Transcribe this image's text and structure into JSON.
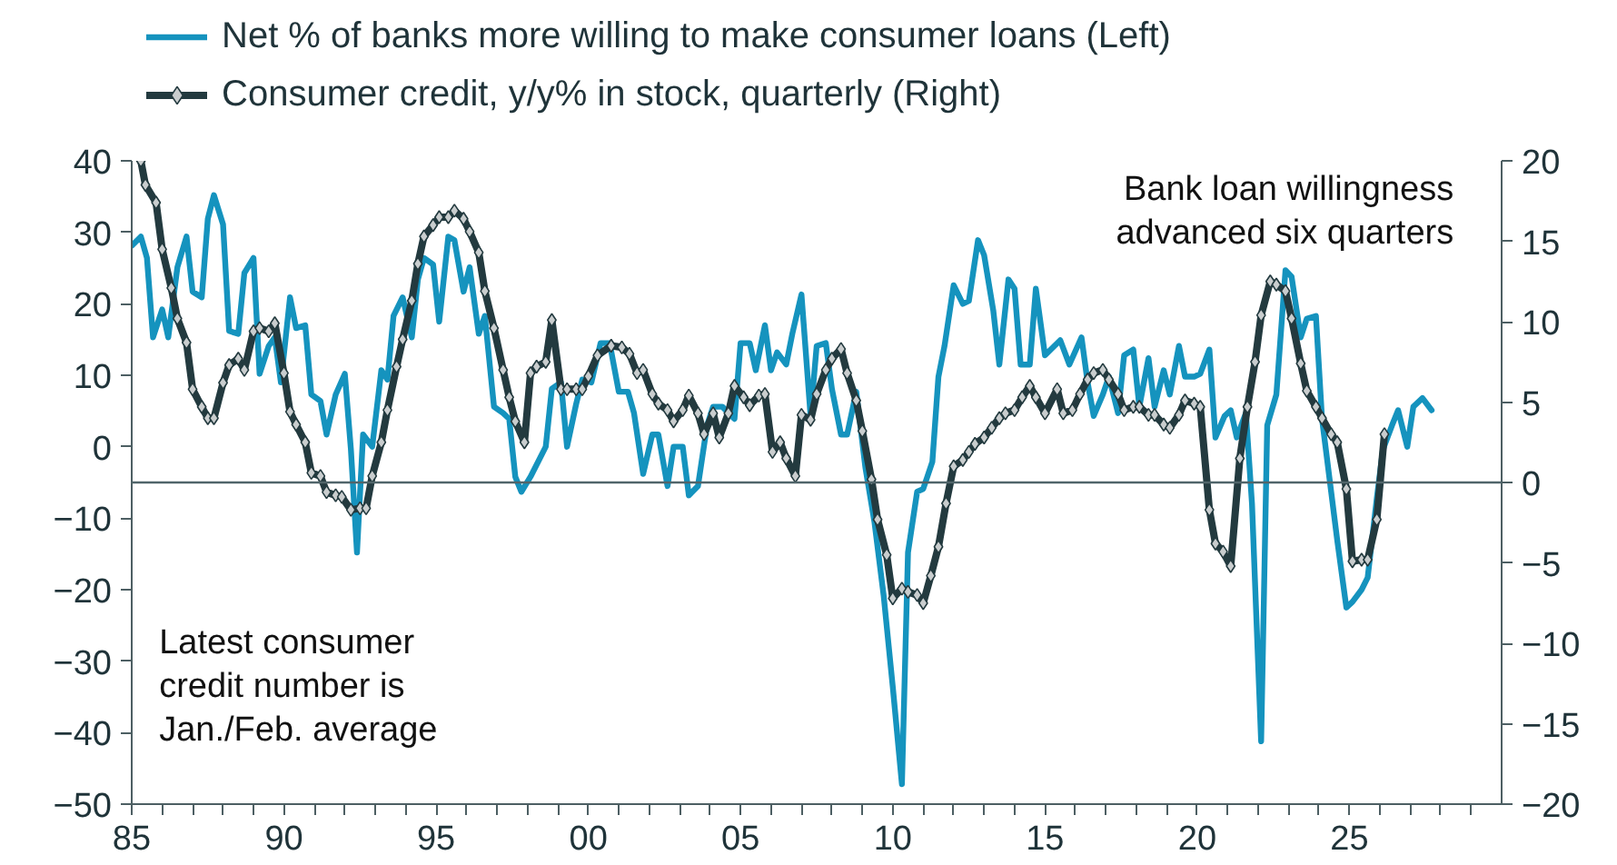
{
  "chart_data": {
    "type": "line",
    "xlim": [
      1985,
      2030
    ],
    "xticks": [
      {
        "value": 1985,
        "label": "85"
      },
      {
        "value": 1986,
        "label": null
      },
      {
        "value": 1987,
        "label": null
      },
      {
        "value": 1988,
        "label": null
      },
      {
        "value": 1989,
        "label": null
      },
      {
        "value": 1990,
        "label": "90"
      },
      {
        "value": 1991,
        "label": null
      },
      {
        "value": 1992,
        "label": null
      },
      {
        "value": 1993,
        "label": null
      },
      {
        "value": 1994,
        "label": null
      },
      {
        "value": 1995,
        "label": "95"
      },
      {
        "value": 1996,
        "label": null
      },
      {
        "value": 1997,
        "label": null
      },
      {
        "value": 1998,
        "label": null
      },
      {
        "value": 1999,
        "label": null
      },
      {
        "value": 2000,
        "label": "00"
      },
      {
        "value": 2001,
        "label": null
      },
      {
        "value": 2002,
        "label": null
      },
      {
        "value": 2003,
        "label": null
      },
      {
        "value": 2004,
        "label": null
      },
      {
        "value": 2005,
        "label": "05"
      },
      {
        "value": 2006,
        "label": null
      },
      {
        "value": 2007,
        "label": null
      },
      {
        "value": 2008,
        "label": null
      },
      {
        "value": 2009,
        "label": null
      },
      {
        "value": 2010,
        "label": "10"
      },
      {
        "value": 2011,
        "label": null
      },
      {
        "value": 2012,
        "label": null
      },
      {
        "value": 2013,
        "label": null
      },
      {
        "value": 2014,
        "label": null
      },
      {
        "value": 2015,
        "label": "15"
      },
      {
        "value": 2016,
        "label": null
      },
      {
        "value": 2017,
        "label": null
      },
      {
        "value": 2018,
        "label": null
      },
      {
        "value": 2019,
        "label": null
      },
      {
        "value": 2020,
        "label": "20"
      },
      {
        "value": 2021,
        "label": null
      },
      {
        "value": 2022,
        "label": null
      },
      {
        "value": 2023,
        "label": null
      },
      {
        "value": 2024,
        "label": null
      },
      {
        "value": 2025,
        "label": "25"
      },
      {
        "value": 2026,
        "label": null
      },
      {
        "value": 2027,
        "label": null
      },
      {
        "value": 2028,
        "label": null
      },
      {
        "value": 2029,
        "label": null
      }
    ],
    "ylim": [
      -50,
      40
    ],
    "yticks": [
      -50,
      -40,
      -30,
      -20,
      -10,
      0,
      10,
      20,
      30,
      40
    ],
    "y2lim": [
      -20,
      20
    ],
    "y2ticks": [
      -20,
      -15,
      -10,
      -5,
      0,
      5,
      10,
      15,
      20
    ],
    "legend": "top",
    "annotations": [
      "Bank loan willingness\nadvanced six quarters",
      "Latest consumer\ncredit number is\nJan./Feb. average"
    ],
    "ref_lines": [
      {
        "axis": "y2",
        "value": 0,
        "color": "#50656a"
      }
    ],
    "series": [
      {
        "name": "Net % of banks more willing to make consumer loans (Left)",
        "color": "#1593be",
        "marker": "none",
        "x": [
          1985.0,
          1985.3,
          1985.5,
          1985.7,
          1986.0,
          1986.2,
          1986.5,
          1986.8,
          1987.0,
          1987.3,
          1987.5,
          1987.7,
          1988.0,
          1988.2,
          1988.5,
          1988.7,
          1989.0,
          1989.2,
          1989.5,
          1989.7,
          1989.9,
          1990.2,
          1990.4,
          1990.7,
          1990.9,
          1991.2,
          1991.4,
          1991.7,
          1992.0,
          1992.2,
          1992.4,
          1992.6,
          1992.9,
          1993.2,
          1993.4,
          1993.6,
          1993.9,
          1994.2,
          1994.4,
          1994.6,
          1994.9,
          1995.1,
          1995.4,
          1995.6,
          1995.9,
          1996.1,
          1996.4,
          1996.6,
          1996.9,
          1997.2,
          1997.4,
          1997.6,
          1997.8,
          1998.1,
          1998.6,
          1998.8,
          1999.1,
          1999.3,
          1999.6,
          1999.8,
          2000.1,
          2000.4,
          2000.7,
          2001.0,
          2001.3,
          2001.5,
          2001.8,
          2002.1,
          2002.3,
          2002.6,
          2002.8,
          2003.1,
          2003.3,
          2003.6,
          2003.9,
          2004.1,
          2004.4,
          2004.8,
          2005.0,
          2005.3,
          2005.5,
          2005.8,
          2006.0,
          2006.2,
          2006.5,
          2006.7,
          2007.0,
          2007.3,
          2007.5,
          2007.8,
          2008.0,
          2008.3,
          2008.5,
          2008.8,
          2009.1,
          2009.4,
          2009.7,
          2010.0,
          2010.3,
          2010.5,
          2010.8,
          2011.0,
          2011.3,
          2011.5,
          2011.7,
          2012.0,
          2012.3,
          2012.5,
          2012.8,
          2013.0,
          2013.3,
          2013.5,
          2013.8,
          2014.0,
          2014.2,
          2014.5,
          2014.7,
          2015.0,
          2015.5,
          2015.8,
          2016.2,
          2016.4,
          2016.6,
          2016.9,
          2017.1,
          2017.4,
          2017.6,
          2017.9,
          2018.1,
          2018.4,
          2018.6,
          2018.9,
          2019.1,
          2019.4,
          2019.6,
          2019.9,
          2020.1,
          2020.4,
          2020.6,
          2020.9,
          2021.1,
          2021.3,
          2021.6,
          2021.8,
          2022.1,
          2022.3,
          2022.6,
          2022.9,
          2023.1,
          2023.4,
          2023.6,
          2023.9,
          2024.1,
          2024.4,
          2024.6,
          2024.9,
          2025.1,
          2025.4,
          2025.6,
          2025.9,
          2026.1,
          2026.4,
          2026.6,
          2026.9,
          2027.1,
          2027.4,
          2027.7
        ],
        "values": [
          28.1,
          29.4,
          26.4,
          15.3,
          19.2,
          15.3,
          25.1,
          29.4,
          21.7,
          20.9,
          31.9,
          35.2,
          31.1,
          16.2,
          15.8,
          24.3,
          26.4,
          10.2,
          14.1,
          15.3,
          9.0,
          20.9,
          16.6,
          17.0,
          7.3,
          6.4,
          1.7,
          7.3,
          10.2,
          -0.4,
          -14.8,
          1.7,
          0.0,
          10.7,
          9.4,
          18.3,
          20.9,
          15.3,
          23.4,
          26.4,
          25.5,
          17.5,
          29.4,
          28.9,
          21.7,
          25.1,
          15.8,
          18.3,
          5.6,
          4.7,
          3.9,
          -4.2,
          -6.3,
          -4.2,
          0.0,
          8.1,
          9.0,
          0.0,
          6.0,
          9.4,
          9.0,
          14.5,
          14.5,
          7.7,
          7.7,
          4.7,
          -3.8,
          1.7,
          1.7,
          -5.5,
          0.0,
          0.0,
          -6.8,
          -5.5,
          3.0,
          5.6,
          5.6,
          3.9,
          14.5,
          14.5,
          10.7,
          17.0,
          10.7,
          13.2,
          11.5,
          15.8,
          21.3,
          4.3,
          14.1,
          14.5,
          8.1,
          1.7,
          1.7,
          7.7,
          -2.9,
          -10.6,
          -20.8,
          -33.6,
          -47.2,
          -14.8,
          -6.3,
          -5.9,
          -2.1,
          9.8,
          14.1,
          22.6,
          20.0,
          20.4,
          28.9,
          26.8,
          19.1,
          11.5,
          23.4,
          22.1,
          11.5,
          11.5,
          22.1,
          12.8,
          14.9,
          11.5,
          15.3,
          9.0,
          4.3,
          7.3,
          9.8,
          4.7,
          12.8,
          13.6,
          5.6,
          12.4,
          5.6,
          10.7,
          7.3,
          14.1,
          9.8,
          9.8,
          10.2,
          13.6,
          1.3,
          4.3,
          5.1,
          1.3,
          4.7,
          -8.0,
          -41.2,
          3.0,
          7.3,
          24.7,
          23.8,
          15.3,
          17.9,
          18.3,
          3.9,
          -6.3,
          -13.1,
          -22.5,
          -21.7,
          -20.0,
          -18.3,
          -7.2,
          -0.4,
          3.0,
          5.1,
          0.0,
          5.6,
          6.8,
          5.1
        ]
      },
      {
        "name": "Consumer credit, y/y% in stock, quarterly (Right)",
        "color": "#233a3f",
        "axis": "y2",
        "marker": "diamond",
        "x": [
          1985.3,
          1985.45,
          1985.8,
          1986.0,
          1986.3,
          1986.5,
          1986.8,
          1987.0,
          1987.3,
          1987.5,
          1987.7,
          1988.0,
          1988.2,
          1988.5,
          1988.7,
          1989.0,
          1989.2,
          1989.5,
          1989.7,
          1990.0,
          1990.2,
          1990.4,
          1990.7,
          1990.9,
          1991.2,
          1991.4,
          1991.7,
          1991.9,
          1992.2,
          1992.5,
          1992.7,
          1992.9,
          1993.2,
          1993.4,
          1993.7,
          1993.9,
          1994.2,
          1994.4,
          1994.6,
          1994.9,
          1995.1,
          1995.4,
          1995.6,
          1995.9,
          1996.1,
          1996.4,
          1996.6,
          1996.9,
          1997.2,
          1997.4,
          1997.6,
          1997.9,
          1998.1,
          1998.3,
          1998.6,
          1998.8,
          1999.1,
          1999.3,
          1999.6,
          1999.8,
          2000.0,
          2000.3,
          2000.75,
          2001.1,
          2001.35,
          2001.6,
          2001.8,
          2002.1,
          2002.3,
          2002.6,
          2002.8,
          2003.1,
          2003.3,
          2003.6,
          2003.8,
          2004.1,
          2004.3,
          2004.6,
          2004.8,
          2005.1,
          2005.3,
          2005.6,
          2005.8,
          2006.05,
          2006.3,
          2006.5,
          2006.8,
          2007.0,
          2007.3,
          2007.5,
          2007.8,
          2008.0,
          2008.3,
          2008.5,
          2008.8,
          2009.0,
          2009.3,
          2009.5,
          2009.8,
          2010.0,
          2010.3,
          2010.5,
          2010.8,
          2011.0,
          2011.25,
          2011.5,
          2011.75,
          2012.0,
          2012.3,
          2012.5,
          2012.7,
          2013.0,
          2013.25,
          2013.5,
          2013.7,
          2014.0,
          2014.25,
          2014.5,
          2014.7,
          2015.0,
          2015.4,
          2015.6,
          2015.9,
          2016.15,
          2016.4,
          2016.6,
          2016.9,
          2017.1,
          2017.4,
          2017.6,
          2017.9,
          2018.1,
          2018.4,
          2018.6,
          2018.9,
          2019.1,
          2019.4,
          2019.6,
          2019.9,
          2020.1,
          2020.4,
          2020.6,
          2020.85,
          2021.1,
          2021.4,
          2021.65,
          2021.9,
          2022.1,
          2022.4,
          2022.6,
          2022.9,
          2023.1,
          2023.4,
          2023.6,
          2023.9,
          2024.1,
          2024.4,
          2024.6,
          2024.9,
          2025.1,
          2025.4,
          2025.6,
          2025.9,
          2026.15
        ],
        "values": [
          20,
          18.5,
          17.4,
          14.5,
          12.1,
          10.2,
          8.7,
          5.8,
          4.7,
          4.0,
          4.0,
          6.2,
          7.3,
          7.7,
          7.0,
          9.4,
          9.6,
          9.4,
          9.9,
          6.8,
          4.4,
          3.6,
          2.5,
          0.6,
          0.4,
          -0.6,
          -0.8,
          -0.9,
          -1.7,
          -1.6,
          -1.6,
          0.4,
          2.5,
          4.5,
          7.2,
          8.9,
          11.3,
          13.6,
          15.3,
          16.0,
          16.5,
          16.5,
          16.9,
          16.4,
          15.6,
          14.3,
          11.9,
          9.6,
          7.0,
          5.3,
          3.8,
          2.5,
          6.8,
          7.2,
          7.5,
          10.1,
          5.8,
          5.8,
          5.8,
          5.8,
          6.6,
          7.9,
          8.5,
          8.4,
          8.0,
          6.8,
          7.0,
          5.5,
          4.9,
          4.5,
          3.8,
          4.5,
          5.4,
          4.3,
          3.0,
          4.3,
          2.8,
          4.3,
          6.0,
          5.3,
          4.8,
          5.4,
          5.5,
          1.9,
          2.5,
          1.5,
          0.4,
          4.2,
          3.9,
          5.5,
          7.0,
          7.7,
          8.3,
          6.8,
          5.1,
          3.2,
          0.2,
          -2.3,
          -4.5,
          -7.2,
          -6.6,
          -6.8,
          -7.0,
          -7.5,
          -5.8,
          -4.0,
          -1.3,
          1.0,
          1.4,
          1.9,
          2.4,
          2.8,
          3.4,
          4.0,
          4.3,
          4.5,
          5.3,
          6.0,
          5.3,
          4.3,
          5.8,
          4.3,
          4.5,
          5.5,
          6.4,
          6.8,
          7.0,
          6.4,
          5.5,
          4.5,
          4.7,
          4.7,
          4.2,
          4.2,
          3.6,
          3.4,
          4.2,
          5.1,
          4.9,
          4.7,
          -1.7,
          -3.8,
          -4.3,
          -5.2,
          1.5,
          4.7,
          7.5,
          10.4,
          12.5,
          12.3,
          11.9,
          10.2,
          7.4,
          5.7,
          4.7,
          4.0,
          3.0,
          2.5,
          -0.4,
          -4.9,
          -4.8,
          -4.8,
          -2.3,
          3.0
        ]
      }
    ]
  }
}
